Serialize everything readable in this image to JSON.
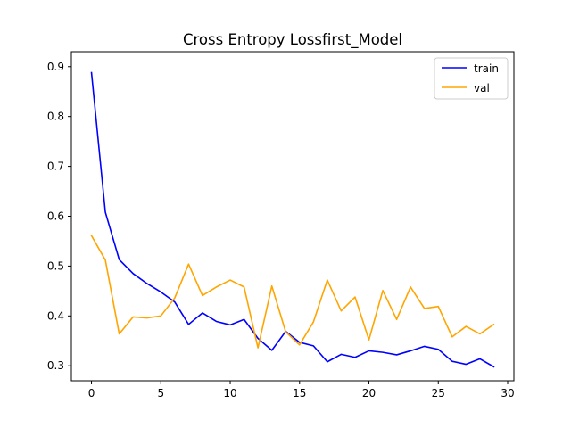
{
  "chart_data": {
    "type": "line",
    "title": "Cross Entropy Lossfirst_Model",
    "xlabel": "",
    "ylabel": "",
    "xlim": [
      -1.45,
      30.45
    ],
    "ylim": [
      0.27,
      0.93
    ],
    "xticks": [
      0,
      5,
      10,
      15,
      20,
      25,
      30
    ],
    "yticks": [
      0.3,
      0.4,
      0.5,
      0.6,
      0.7,
      0.8,
      0.9
    ],
    "grid": false,
    "legend_position": "top-right",
    "x": [
      0,
      1,
      2,
      3,
      4,
      5,
      6,
      7,
      8,
      9,
      10,
      11,
      12,
      13,
      14,
      15,
      16,
      17,
      18,
      19,
      20,
      21,
      22,
      23,
      24,
      25,
      26,
      27,
      28,
      29
    ],
    "series": [
      {
        "name": "train",
        "color": "#0000ff",
        "values": [
          0.888,
          0.608,
          0.513,
          0.485,
          0.465,
          0.448,
          0.428,
          0.383,
          0.406,
          0.389,
          0.382,
          0.393,
          0.355,
          0.331,
          0.369,
          0.347,
          0.34,
          0.308,
          0.323,
          0.317,
          0.33,
          0.327,
          0.322,
          0.33,
          0.339,
          0.333,
          0.309,
          0.303,
          0.314,
          0.298
        ]
      },
      {
        "name": "val",
        "color": "#ffa500",
        "values": [
          0.561,
          0.512,
          0.364,
          0.398,
          0.396,
          0.4,
          0.436,
          0.504,
          0.441,
          0.458,
          0.472,
          0.458,
          0.336,
          0.46,
          0.368,
          0.342,
          0.388,
          0.472,
          0.41,
          0.438,
          0.352,
          0.451,
          0.393,
          0.458,
          0.415,
          0.419,
          0.358,
          0.379,
          0.364,
          0.383
        ]
      }
    ]
  }
}
